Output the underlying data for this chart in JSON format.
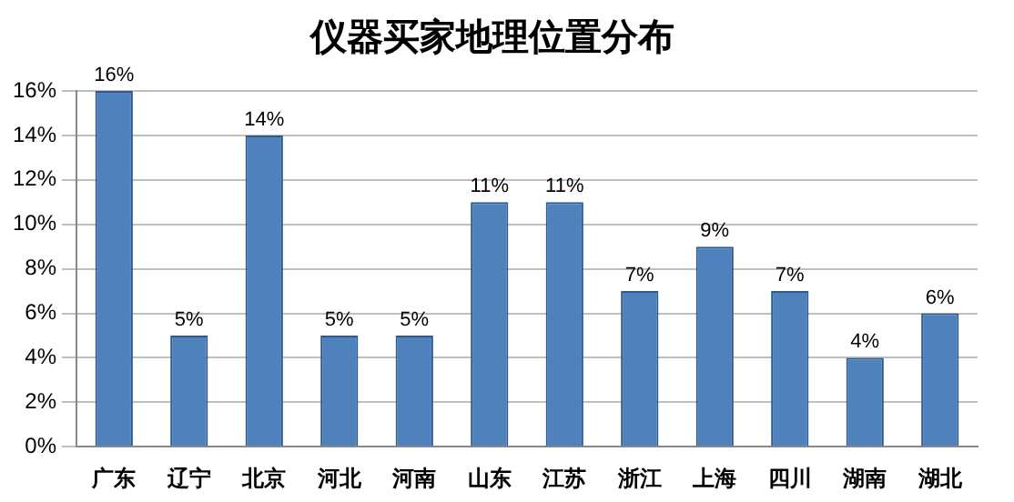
{
  "chart_data": {
    "type": "bar",
    "title": "仪器买家地理位置分布",
    "categories": [
      "广东",
      "辽宁",
      "北京",
      "河北",
      "河南",
      "山东",
      "江苏",
      "浙江",
      "上海",
      "四川",
      "湖南",
      "湖北"
    ],
    "values": [
      16,
      5,
      14,
      5,
      5,
      11,
      11,
      7,
      9,
      7,
      4,
      6
    ],
    "value_labels": [
      "16%",
      "5%",
      "14%",
      "5%",
      "5%",
      "11%",
      "11%",
      "7%",
      "9%",
      "7%",
      "4%",
      "6%"
    ],
    "color": "#4f81bd",
    "ylim": [
      0,
      16
    ],
    "yticks": [
      {
        "value": 0,
        "label": "0%"
      },
      {
        "value": 2,
        "label": "2%"
      },
      {
        "value": 4,
        "label": "4%"
      },
      {
        "value": 6,
        "label": "6%"
      },
      {
        "value": 8,
        "label": "8%"
      },
      {
        "value": 10,
        "label": "10%"
      },
      {
        "value": 12,
        "label": "12%"
      },
      {
        "value": 14,
        "label": "14%"
      },
      {
        "value": 16,
        "label": "16%"
      }
    ],
    "grid": "y",
    "legend": false
  }
}
